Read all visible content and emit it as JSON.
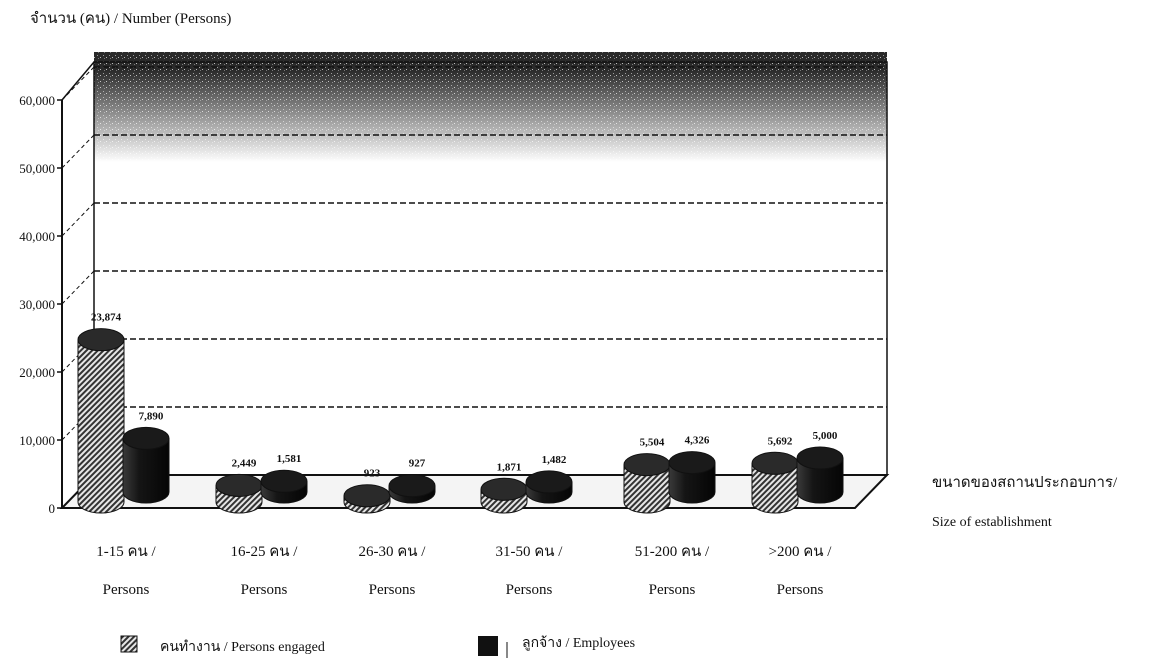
{
  "chart_data": {
    "type": "bar",
    "ylabel": "จำนวน (คน) / Number  (Persons)",
    "xlabel_line1": "ขนาดของสถานประกอบการ/",
    "xlabel_line2": "Size of establishment",
    "categories": [
      [
        "1-15 คน /",
        "Persons"
      ],
      [
        "16-25 คน /",
        "Persons"
      ],
      [
        "26-30 คน /",
        "Persons"
      ],
      [
        "31-50 คน /",
        "Persons"
      ],
      [
        "51-200 คน /",
        "Persons"
      ],
      [
        ">200  คน /",
        "Persons"
      ]
    ],
    "series": [
      {
        "name": "คนทำงาน / Persons engaged",
        "values": [
          23874,
          2449,
          923,
          1871,
          5504,
          5692
        ],
        "labels": [
          "23,874",
          "2,449",
          "923",
          "1,871",
          "5,504",
          "5,692"
        ],
        "pattern": "hatched"
      },
      {
        "name": "ลูกจ้าง / Employees",
        "values": [
          7890,
          1581,
          927,
          1482,
          4326,
          5000
        ],
        "labels": [
          "7,890",
          "1,581",
          "927",
          "1,482",
          "4,326",
          "5,000"
        ],
        "pattern": "solid"
      }
    ],
    "y_ticks": [
      "0",
      "10,000",
      "20,000",
      "30,000",
      "40,000",
      "50,000",
      "60,000"
    ],
    "ylim": [
      0,
      60000
    ],
    "grid": true,
    "style": "3d-cylinder",
    "colors": {
      "bar_dark": "#1a1a1a",
      "hatch": "#777777",
      "grid": "#111111"
    }
  }
}
